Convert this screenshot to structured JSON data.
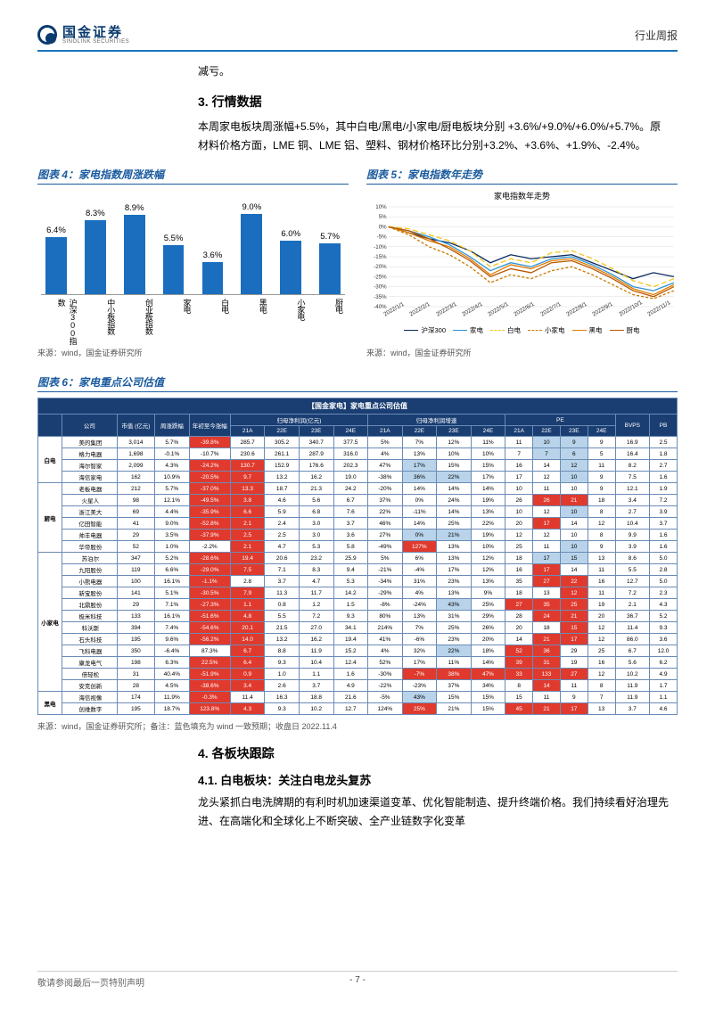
{
  "header": {
    "logo_cn": "国金证券",
    "logo_en": "SINOLINK SECURITIES",
    "right_label": "行业周报"
  },
  "intro_top": "减亏。",
  "section3": {
    "heading": "3. 行情数据",
    "paragraph": "本周家电板块周涨幅+5.5%，其中白电/黑电/小家电/厨电板块分别 +3.6%/+9.0%/+6.0%/+5.7%。原材料价格方面，LME 铜、LME 铝、塑料、钢材价格环比分别+3.2%、+3.6%、+1.9%、-2.4%。"
  },
  "chart4": {
    "title": "图表 4：家电指数周涨跌幅",
    "ymax": 10,
    "bar_color": "#1a6ebd",
    "categories": [
      "沪深300指数",
      "中小板指数",
      "创业板指数",
      "家电",
      "白电",
      "黑电",
      "小家电",
      "厨电"
    ],
    "values": [
      6.4,
      8.3,
      8.9,
      5.5,
      3.6,
      9.0,
      6.0,
      5.7
    ],
    "labels": [
      "6.4%",
      "8.3%",
      "8.9%",
      "5.5%",
      "3.6%",
      "9.0%",
      "6.0%",
      "5.7%"
    ],
    "source": "来源：wind，国金证券研究所"
  },
  "chart5": {
    "title": "图表 5：家电指数年走势",
    "inner_title": "家电指数年走势",
    "ylim": [
      -40,
      10
    ],
    "yticks": [
      "10%",
      "5%",
      "0%",
      "-5%",
      "-10%",
      "-15%",
      "-20%",
      "-25%",
      "-30%",
      "-35%",
      "-40%"
    ],
    "xticks": [
      "2022/1/1",
      "2022/2/1",
      "2022/3/1",
      "2022/4/1",
      "2022/5/1",
      "2022/6/1",
      "2022/7/1",
      "2022/8/1",
      "2022/9/1",
      "2022/10/1",
      "2022/11/1"
    ],
    "grid_color": "#dddddd",
    "series": [
      {
        "name": "沪深300",
        "color": "#0a2a5e",
        "dash": "",
        "points": [
          0,
          -3,
          -6,
          -8,
          -12,
          -18,
          -14,
          -16,
          -15,
          -14,
          -18,
          -22,
          -26,
          -23,
          -25
        ]
      },
      {
        "name": "家电",
        "color": "#2e94d6",
        "dash": "",
        "points": [
          0,
          -2,
          -5,
          -9,
          -15,
          -22,
          -18,
          -20,
          -16,
          -15,
          -19,
          -24,
          -30,
          -32,
          -28
        ]
      },
      {
        "name": "白电",
        "color": "#f5c518",
        "dash": "6,3",
        "points": [
          0,
          -1,
          -4,
          -7,
          -12,
          -20,
          -16,
          -18,
          -13,
          -12,
          -16,
          -21,
          -27,
          -30,
          -26
        ]
      },
      {
        "name": "小家电",
        "color": "#c97b00",
        "dash": "3,2",
        "points": [
          0,
          -4,
          -10,
          -14,
          -20,
          -28,
          -24,
          -26,
          -22,
          -20,
          -24,
          -29,
          -34,
          -36,
          -32
        ]
      },
      {
        "name": "黑电",
        "color": "#e07b00",
        "dash": "",
        "points": [
          0,
          -3,
          -7,
          -10,
          -16,
          -24,
          -19,
          -21,
          -17,
          -16,
          -20,
          -25,
          -31,
          -34,
          -29
        ]
      },
      {
        "name": "厨电",
        "color": "#b85700",
        "dash": "",
        "points": [
          0,
          -2,
          -6,
          -11,
          -17,
          -25,
          -21,
          -23,
          -18,
          -17,
          -21,
          -26,
          -32,
          -35,
          -30
        ]
      }
    ],
    "source": "来源：wind，国金证券研究所"
  },
  "table6": {
    "title": "图表 6：家电重点公司估值",
    "banner": "【国金家电】家电重点公司估值",
    "group_headers": [
      "",
      "公司",
      "市值 (亿元)",
      "周涨跌幅",
      "年初至今涨幅",
      "归母净利润(亿元)",
      "归母净利润增速",
      "PE",
      "BVPS",
      "PB"
    ],
    "sub_headers": [
      "21A",
      "22E",
      "23E",
      "24E",
      "21A",
      "22E",
      "23E",
      "24E",
      "21A",
      "22E",
      "23E",
      "24E"
    ],
    "hi_red": "#e03a2e",
    "hi_blue": "#b9d4ea",
    "categories": [
      {
        "name": "白电",
        "rows": [
          {
            "c": "美的集团",
            "v": [
              "3,014",
              "5.7%",
              "-39.8%",
              "285.7",
              "305.2",
              "340.7",
              "377.5",
              "5%",
              "7%",
              "12%",
              "11%",
              "11",
              "10",
              "9",
              "9",
              "16.9",
              "2.5"
            ],
            "hi": {
              "3": "r",
              "13": "b",
              "14": "b"
            }
          },
          {
            "c": "格力电器",
            "v": [
              "1,698",
              "-0.1%",
              "-10.7%",
              "230.6",
              "261.1",
              "287.9",
              "316.0",
              "4%",
              "13%",
              "10%",
              "10%",
              "7",
              "7",
              "6",
              "5",
              "16.4",
              "1.8"
            ],
            "hi": {
              "13": "b",
              "14": "b"
            }
          },
          {
            "c": "海尔智家",
            "v": [
              "2,099",
              "4.3%",
              "-24.2%",
              "130.7",
              "152.9",
              "176.6",
              "202.3",
              "47%",
              "17%",
              "15%",
              "15%",
              "16",
              "14",
              "12",
              "11",
              "8.2",
              "2.7"
            ],
            "hi": {
              "3": "r",
              "4": "r",
              "9": "b",
              "14": "b"
            }
          },
          {
            "c": "海信家电",
            "v": [
              "162",
              "10.9%",
              "-20.5%",
              "9.7",
              "13.2",
              "16.2",
              "19.0",
              "-38%",
              "36%",
              "22%",
              "17%",
              "17",
              "12",
              "10",
              "9",
              "7.5",
              "1.6"
            ],
            "hi": {
              "3": "r",
              "4": "r",
              "9": "b",
              "10": "b",
              "14": "b"
            }
          }
        ]
      },
      {
        "name": "厨电",
        "rows": [
          {
            "c": "老板电器",
            "v": [
              "212",
              "5.7%",
              "-37.0%",
              "13.3",
              "18.7",
              "21.3",
              "24.2",
              "-20%",
              "14%",
              "14%",
              "14%",
              "10",
              "11",
              "10",
              "9",
              "12.1",
              "1.9"
            ],
            "hi": {
              "3": "r",
              "4": "r"
            }
          },
          {
            "c": "火星人",
            "v": [
              "98",
              "12.1%",
              "-49.5%",
              "3.8",
              "4.6",
              "5.6",
              "6.7",
              "37%",
              "0%",
              "24%",
              "19%",
              "26",
              "26",
              "21",
              "18",
              "3.4",
              "7.2"
            ],
            "hi": {
              "3": "r",
              "4": "r",
              "13": "r",
              "14": "r"
            }
          },
          {
            "c": "浙江美大",
            "v": [
              "69",
              "4.4%",
              "-35.9%",
              "6.6",
              "5.9",
              "6.8",
              "7.6",
              "22%",
              "-11%",
              "14%",
              "13%",
              "10",
              "12",
              "10",
              "8",
              "2.7",
              "3.9"
            ],
            "hi": {
              "3": "r",
              "4": "r",
              "14": "b"
            }
          },
          {
            "c": "亿田智能",
            "v": [
              "41",
              "9.0%",
              "-52.8%",
              "2.1",
              "2.4",
              "3.0",
              "3.7",
              "46%",
              "14%",
              "25%",
              "22%",
              "20",
              "17",
              "14",
              "12",
              "10.4",
              "3.7"
            ],
            "hi": {
              "3": "r",
              "4": "r",
              "13": "r"
            }
          },
          {
            "c": "帅丰电器",
            "v": [
              "29",
              "3.5%",
              "-37.9%",
              "2.5",
              "2.5",
              "3.0",
              "3.6",
              "27%",
              "0%",
              "21%",
              "19%",
              "12",
              "12",
              "10",
              "8",
              "9.9",
              "1.6"
            ],
            "hi": {
              "3": "r",
              "4": "r",
              "9": "b",
              "10": "b"
            }
          },
          {
            "c": "华帝股份",
            "v": [
              "52",
              "1.0%",
              "-2.2%",
              "2.1",
              "4.7",
              "5.3",
              "5.8",
              "-49%",
              "127%",
              "13%",
              "10%",
              "25",
              "11",
              "10",
              "9",
              "3.9",
              "1.6"
            ],
            "hi": {
              "4": "r",
              "9": "r",
              "14": "b"
            }
          }
        ]
      },
      {
        "name": "小家电",
        "rows": [
          {
            "c": "苏泊尔",
            "v": [
              "347",
              "5.2%",
              "-28.6%",
              "19.4",
              "20.6",
              "23.2",
              "25.9",
              "5%",
              "6%",
              "13%",
              "12%",
              "18",
              "17",
              "15",
              "13",
              "8.6",
              "5.0"
            ],
            "hi": {
              "3": "r",
              "4": "r",
              "13": "b",
              "14": "b"
            }
          },
          {
            "c": "九阳股份",
            "v": [
              "119",
              "6.6%",
              "-29.0%",
              "7.5",
              "7.1",
              "8.3",
              "9.4",
              "-21%",
              "-4%",
              "17%",
              "12%",
              "16",
              "17",
              "14",
              "11",
              "5.5",
              "2.8"
            ],
            "hi": {
              "3": "r",
              "4": "r",
              "13": "r"
            }
          },
          {
            "c": "小熊电器",
            "v": [
              "100",
              "16.1%",
              "-1.1%",
              "2.8",
              "3.7",
              "4.7",
              "5.3",
              "-34%",
              "31%",
              "23%",
              "13%",
              "35",
              "27",
              "22",
              "16",
              "12.7",
              "5.0"
            ],
            "hi": {
              "3": "r",
              "13": "r",
              "14": "r"
            }
          },
          {
            "c": "新宝股份",
            "v": [
              "141",
              "5.1%",
              "-30.5%",
              "7.9",
              "11.3",
              "11.7",
              "14.2",
              "-29%",
              "4%",
              "13%",
              "9%",
              "18",
              "13",
              "12",
              "11",
              "7.2",
              "2.3"
            ],
            "hi": {
              "3": "r",
              "4": "r",
              "14": "r"
            }
          },
          {
            "c": "北鼎股份",
            "v": [
              "29",
              "7.1%",
              "-27.3%",
              "1.1",
              "0.8",
              "1.2",
              "1.5",
              "-8%",
              "-24%",
              "43%",
              "25%",
              "27",
              "35",
              "25",
              "19",
              "2.1",
              "4.3"
            ],
            "hi": {
              "3": "r",
              "4": "r",
              "10": "b",
              "12": "r",
              "13": "r",
              "14": "r"
            }
          },
          {
            "c": "极米科技",
            "v": [
              "133",
              "16.1%",
              "-51.6%",
              "4.8",
              "5.5",
              "7.2",
              "9.3",
              "80%",
              "13%",
              "31%",
              "29%",
              "28",
              "24",
              "21",
              "20",
              "36.7",
              "5.2"
            ],
            "hi": {
              "3": "r",
              "4": "r",
              "13": "r",
              "14": "r"
            }
          },
          {
            "c": "科沃斯",
            "v": [
              "394",
              "7.4%",
              "-54.6%",
              "20.1",
              "21.5",
              "27.0",
              "34.1",
              "214%",
              "7%",
              "25%",
              "26%",
              "20",
              "18",
              "15",
              "12",
              "11.4",
              "9.3"
            ],
            "hi": {
              "3": "r",
              "4": "r",
              "14": "r"
            }
          },
          {
            "c": "石头科技",
            "v": [
              "195",
              "9.6%",
              "-56.2%",
              "14.0",
              "13.2",
              "16.2",
              "19.4",
              "41%",
              "-6%",
              "23%",
              "20%",
              "14",
              "21",
              "17",
              "12",
              "86.0",
              "3.6"
            ],
            "hi": {
              "3": "r",
              "4": "r",
              "13": "r",
              "14": "r"
            }
          },
          {
            "c": "飞科电器",
            "v": [
              "350",
              "-6.4%",
              "87.3%",
              "6.7",
              "8.8",
              "11.9",
              "15.2",
              "4%",
              "32%",
              "22%",
              "18%",
              "52",
              "36",
              "29",
              "25",
              "6.7",
              "12.0"
            ],
            "hi": {
              "4": "r",
              "10": "b",
              "12": "r",
              "13": "r"
            }
          },
          {
            "c": "康龙电气",
            "v": [
              "198",
              "6.3%",
              "22.5%",
              "6.4",
              "9.3",
              "10.4",
              "12.4",
              "52%",
              "17%",
              "11%",
              "14%",
              "39",
              "31",
              "19",
              "16",
              "5.6",
              "6.2"
            ],
            "hi": {
              "3": "r",
              "4": "r",
              "12": "r",
              "13": "r"
            }
          },
          {
            "c": "倍轻松",
            "v": [
              "31",
              "40.4%",
              "-51.9%",
              "0.9",
              "1.0",
              "1.1",
              "1.6",
              "-30%",
              "-7%",
              "38%",
              "47%",
              "33",
              "133",
              "27",
              "12",
              "10.2",
              "4.9"
            ],
            "hi": {
              "3": "r",
              "4": "r",
              "9": "r",
              "10": "r",
              "11": "r",
              "12": "r",
              "13": "r",
              "14": "r"
            }
          },
          {
            "c": "安克创新",
            "v": [
              "28",
              "4.5%",
              "-38.6%",
              "3.4",
              "2.6",
              "3.7",
              "4.9",
              "-22%",
              "-23%",
              "37%",
              "34%",
              "8",
              "14",
              "11",
              "8",
              "11.9",
              "1.7"
            ],
            "hi": {
              "3": "r",
              "4": "r",
              "13": "r"
            }
          }
        ]
      },
      {
        "name": "黑电",
        "rows": [
          {
            "c": "海信视像",
            "v": [
              "174",
              "11.9%",
              "-0.3%",
              "11.4",
              "16.3",
              "18.8",
              "21.6",
              "-5%",
              "43%",
              "15%",
              "15%",
              "15",
              "11",
              "9",
              "7",
              "11.9",
              "1.1"
            ],
            "hi": {
              "3": "r",
              "9": "b"
            }
          },
          {
            "c": "创维数字",
            "v": [
              "195",
              "18.7%",
              "123.8%",
              "4.3",
              "9.3",
              "10.2",
              "12.7",
              "124%",
              "25%",
              "21%",
              "15%",
              "45",
              "21",
              "17",
              "13",
              "3.7",
              "4.6"
            ],
            "hi": {
              "3": "r",
              "4": "r",
              "9": "r",
              "12": "r",
              "13": "r",
              "14": "r"
            }
          }
        ]
      }
    ],
    "source": "来源：wind，国金证券研究所；备注：蓝色填充为 wind 一致预期；收盘日 2022.11.4"
  },
  "section4": {
    "heading": "4. 各板块跟踪",
    "sub": "4.1. 白电板块：关注白电龙头复苏",
    "paragraph": "龙头紧抓白电洗牌期的有利时机加速渠道变革、优化智能制造、提升终端价格。我们持续看好治理先进、在高端化和全球化上不断突破、全产业链数字化变革"
  },
  "footer": {
    "left": "敬请参阅最后一页特别声明",
    "page": "- 7 -"
  }
}
